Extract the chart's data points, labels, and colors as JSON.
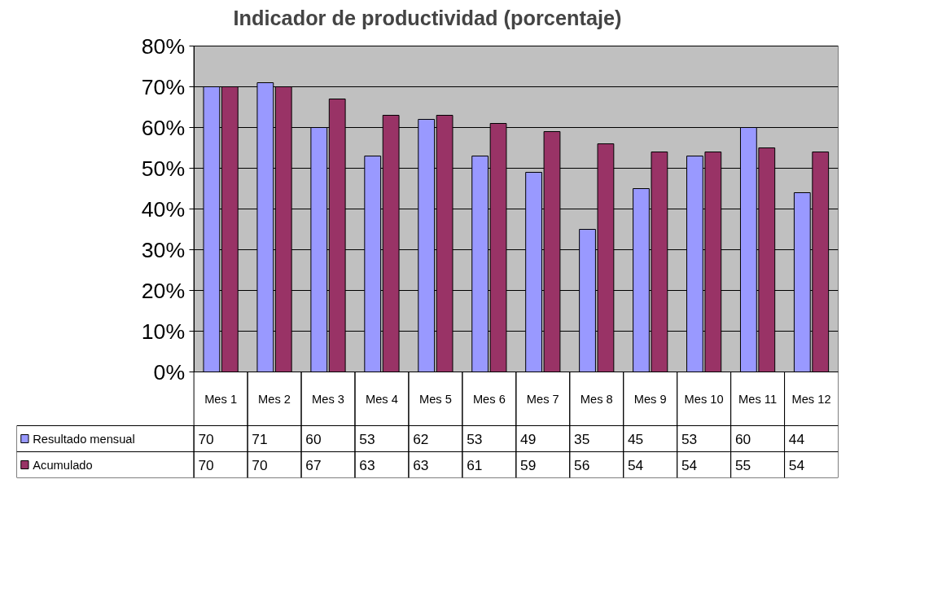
{
  "chart_data": {
    "type": "bar",
    "title": "Indicador de productividad (porcentaje)",
    "categories": [
      "Mes 1",
      "Mes 2",
      "Mes 3",
      "Mes 4",
      "Mes 5",
      "Mes 6",
      "Mes 7",
      "Mes 8",
      "Mes 9",
      "Mes 10",
      "Mes 11",
      "Mes 12"
    ],
    "series": [
      {
        "name": "Resultado mensual",
        "color": "#9999ff",
        "values": [
          70,
          71,
          60,
          53,
          62,
          53,
          49,
          35,
          45,
          53,
          60,
          44
        ]
      },
      {
        "name": "Acumulado",
        "color": "#993366",
        "values": [
          70,
          70,
          67,
          63,
          63,
          61,
          59,
          56,
          54,
          54,
          55,
          54
        ]
      }
    ],
    "ylim": [
      0,
      80
    ],
    "yticks": [
      {
        "value": 0,
        "label": "0%"
      },
      {
        "value": 10,
        "label": "10%"
      },
      {
        "value": 20,
        "label": "20%"
      },
      {
        "value": 30,
        "label": "30%"
      },
      {
        "value": 40,
        "label": "40%"
      },
      {
        "value": 50,
        "label": "50%"
      },
      {
        "value": 60,
        "label": "60%"
      },
      {
        "value": 70,
        "label": "70%"
      },
      {
        "value": 80,
        "label": "80%"
      }
    ],
    "grid": "y",
    "legend": "bottom left",
    "data_labels": true
  }
}
